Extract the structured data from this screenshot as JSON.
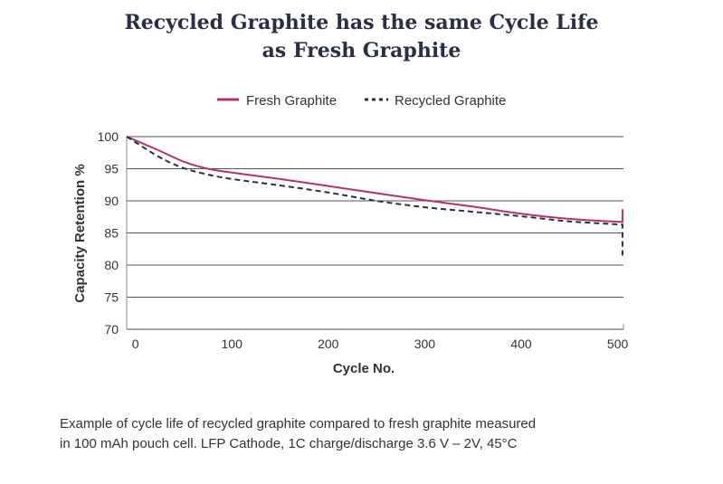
{
  "chart_data": {
    "type": "line",
    "title": [
      "Recycled Graphite has the same Cycle Life",
      "as Fresh Graphite"
    ],
    "xlabel": "Cycle No.",
    "ylabel": "Capacity Retention %",
    "xlim": [
      -9,
      506
    ],
    "ylim": [
      70,
      100
    ],
    "xticks": [
      0,
      100,
      200,
      300,
      400,
      500
    ],
    "yticks": [
      100,
      95,
      90,
      85,
      80,
      75,
      70
    ],
    "grid": "horizontal",
    "legend_position": "top-center",
    "series": [
      {
        "name": "Fresh Graphite",
        "color": "#b5336b",
        "style": "solid",
        "x": [
          -9,
          25,
          50,
          75,
          100,
          150,
          200,
          250,
          300,
          350,
          400,
          450,
          505,
          505
        ],
        "y": [
          100,
          97.8,
          96.1,
          95.0,
          94.4,
          93.4,
          92.3,
          91.2,
          90.1,
          89.1,
          88.0,
          87.2,
          86.7,
          88.7
        ]
      },
      {
        "name": "Recycled Graphite",
        "color": "#2b2f45",
        "style": "dashed",
        "x": [
          -9,
          25,
          50,
          75,
          100,
          150,
          200,
          250,
          300,
          350,
          400,
          450,
          505,
          505
        ],
        "y": [
          100,
          96.8,
          95.1,
          94.1,
          93.4,
          92.4,
          91.3,
          90.0,
          89.0,
          88.3,
          87.6,
          86.8,
          86.3,
          81.5
        ]
      }
    ]
  },
  "caption": [
    "Example of cycle life of recycled graphite compared to fresh graphite measured",
    "in 100 mAh pouch cell. LFP Cathode, 1C charge/discharge 3.6 V – 2V, 45°C"
  ]
}
